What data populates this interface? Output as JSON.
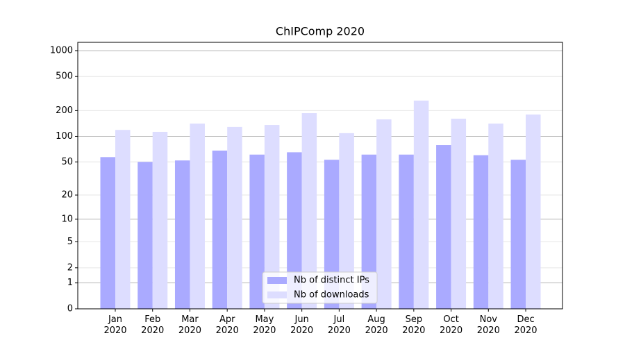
{
  "chart_data": {
    "type": "bar",
    "title": "ChIPComp 2020",
    "categories": [
      "Jan\n2020",
      "Feb\n2020",
      "Mar\n2020",
      "Apr\n2020",
      "May\n2020",
      "Jun\n2020",
      "Jul\n2020",
      "Aug\n2020",
      "Sep\n2020",
      "Oct\n2020",
      "Nov\n2020",
      "Dec\n2020"
    ],
    "series": [
      {
        "name": "Nb of distinct IPs",
        "color": "#aaaaff",
        "values": [
          57,
          50,
          52,
          68,
          61,
          65,
          53,
          61,
          61,
          79,
          60,
          53
        ]
      },
      {
        "name": "Nb of downloads",
        "color": "#ddddff",
        "values": [
          119,
          113,
          141,
          129,
          136,
          187,
          109,
          158,
          262,
          161,
          141,
          180
        ]
      }
    ],
    "yscale": "log1p",
    "ylim": [
      0,
      1249
    ],
    "yticks": [
      0,
      1,
      2,
      5,
      10,
      20,
      50,
      100,
      200,
      500,
      1000
    ],
    "grid": true,
    "legend": "lower center"
  }
}
